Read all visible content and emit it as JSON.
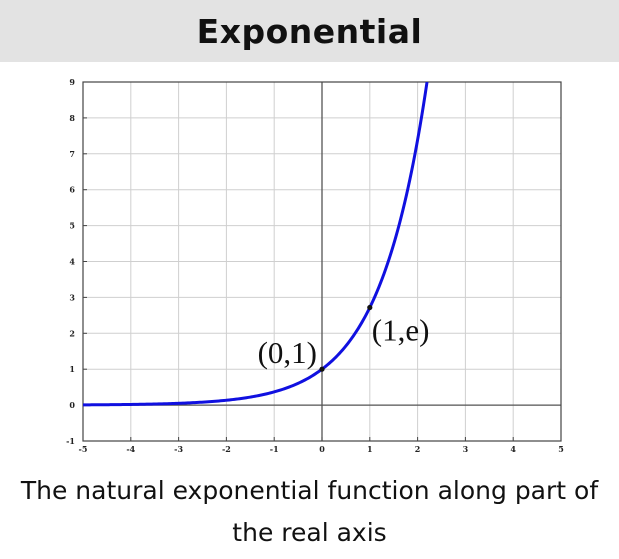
{
  "header": {
    "title": "Exponential"
  },
  "caption": {
    "text": "The natural exponential function along part of the real axis"
  },
  "chart_data": {
    "type": "line",
    "title": "Exponential",
    "function": "exp(x)",
    "xlim": [
      -5,
      5
    ],
    "ylim": [
      -1,
      9
    ],
    "x_ticks": [
      -5,
      -4,
      -3,
      -2,
      -1,
      0,
      1,
      2,
      3,
      4,
      5
    ],
    "y_ticks": [
      -1,
      0,
      1,
      2,
      3,
      4,
      5,
      6,
      7,
      8,
      9
    ],
    "x_tick_labels": [
      "-5",
      "-4",
      "-3",
      "-2",
      "-1",
      "0",
      "1",
      "2",
      "3",
      "4",
      "5"
    ],
    "y_tick_labels": [
      "-1",
      "0",
      "1",
      "2",
      "3",
      "4",
      "5",
      "6",
      "7",
      "8",
      "9"
    ],
    "grid": true,
    "series": [
      {
        "color": "#1010e0",
        "x": [
          -5,
          -4.5,
          -4,
          -3.5,
          -3,
          -2.5,
          -2,
          -1.5,
          -1,
          -0.5,
          0,
          0.25,
          0.5,
          0.75,
          1,
          1.25,
          1.5,
          1.75,
          2,
          2.197
        ],
        "y": [
          0.0067,
          0.0111,
          0.0183,
          0.0302,
          0.0498,
          0.0821,
          0.1353,
          0.2231,
          0.3679,
          0.6065,
          1,
          1.284,
          1.6487,
          2.117,
          2.7183,
          3.4903,
          4.4817,
          5.7546,
          7.3891,
          9
        ]
      }
    ],
    "annotations": [
      {
        "text": "(0,1)",
        "x": 0,
        "y": 1
      },
      {
        "text": "(1,e)",
        "x": 1,
        "y": 2.7183
      }
    ]
  }
}
